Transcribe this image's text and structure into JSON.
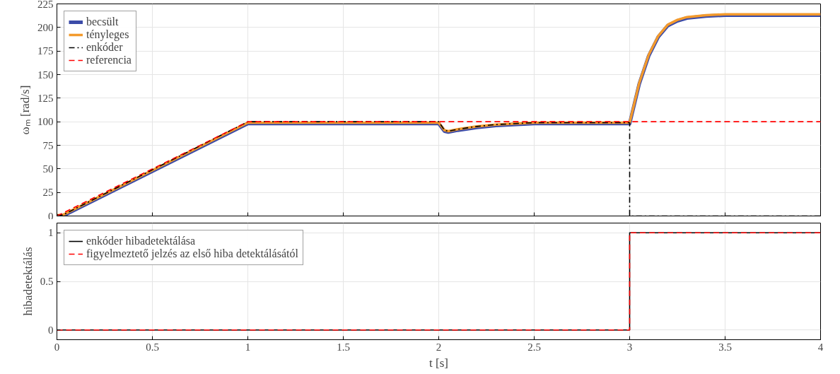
{
  "chart_data": [
    {
      "type": "line",
      "ylabel": "ωₘ [rad/s]",
      "xlim": [
        0,
        4
      ],
      "ylim": [
        0,
        225
      ],
      "xticks": [
        0,
        0.5,
        1,
        1.5,
        2,
        2.5,
        3,
        3.5,
        4
      ],
      "yticks": [
        0,
        25,
        50,
        75,
        100,
        125,
        150,
        175,
        200,
        225
      ],
      "tick_labels": "y",
      "grid": true,
      "legend": "top left",
      "series": [
        {
          "name": "becsült",
          "color": "#3b4ba8",
          "line_style": "solid",
          "x": [
            0,
            0.03,
            1,
            1.1,
            2,
            2.03,
            2.05,
            2.1,
            2.2,
            2.3,
            2.5,
            2.7,
            3,
            3.05,
            3.1,
            3.15,
            3.2,
            3.25,
            3.3,
            3.4,
            3.5,
            4
          ],
          "values": [
            0,
            0,
            98,
            98,
            98,
            90,
            89,
            91,
            94,
            96,
            98,
            98,
            98,
            140,
            170,
            190,
            202,
            207,
            210,
            212,
            213,
            213
          ]
        },
        {
          "name": "tényleges",
          "color": "#f39a2c",
          "line_style": "solid",
          "x": [
            0,
            0.03,
            1,
            1.1,
            2,
            2.03,
            2.05,
            2.1,
            2.2,
            2.3,
            2.5,
            2.7,
            3,
            3.05,
            3.1,
            3.15,
            3.2,
            3.25,
            3.3,
            3.4,
            3.5,
            4
          ],
          "values": [
            1,
            1,
            99,
            99,
            99,
            91,
            90,
            92,
            95,
            97,
            99,
            99,
            99,
            141,
            171,
            191,
            203,
            208,
            211,
            213,
            214,
            214
          ]
        },
        {
          "name": "enkóder",
          "color": "#000000",
          "line_style": "dashdot",
          "x": [
            0,
            0.03,
            1,
            1.1,
            2,
            2.03,
            2.05,
            2.1,
            2.2,
            2.3,
            2.5,
            2.7,
            3,
            3.0,
            4
          ],
          "values": [
            1,
            1,
            100,
            100,
            100,
            91,
            90,
            92,
            95,
            97,
            99,
            99,
            99,
            0,
            0
          ]
        },
        {
          "name": "referencia",
          "color": "#ff0000",
          "line_style": "dashed",
          "x": [
            0,
            1,
            4
          ],
          "values": [
            0,
            100,
            100
          ]
        }
      ]
    },
    {
      "type": "step",
      "xlabel": "t [s]",
      "ylabel": "hibadetektálás",
      "xlim": [
        0,
        4
      ],
      "ylim": [
        -0.1,
        1.1
      ],
      "xticks": [
        0,
        0.5,
        1,
        1.5,
        2,
        2.5,
        3,
        3.5,
        4
      ],
      "yticks": [
        0,
        0.5,
        1
      ],
      "grid": true,
      "legend": "top left",
      "series": [
        {
          "name": "enkóder hibadetektálása",
          "color": "#000000",
          "line_style": "solid",
          "x": [
            0,
            3,
            4
          ],
          "values": [
            0,
            1,
            1
          ]
        },
        {
          "name": "figyelmeztető jelzés az első hiba detektálásától",
          "color": "#ff0000",
          "line_style": "dashed",
          "x": [
            0,
            3,
            4
          ],
          "values": [
            0,
            1,
            1
          ]
        }
      ]
    }
  ]
}
